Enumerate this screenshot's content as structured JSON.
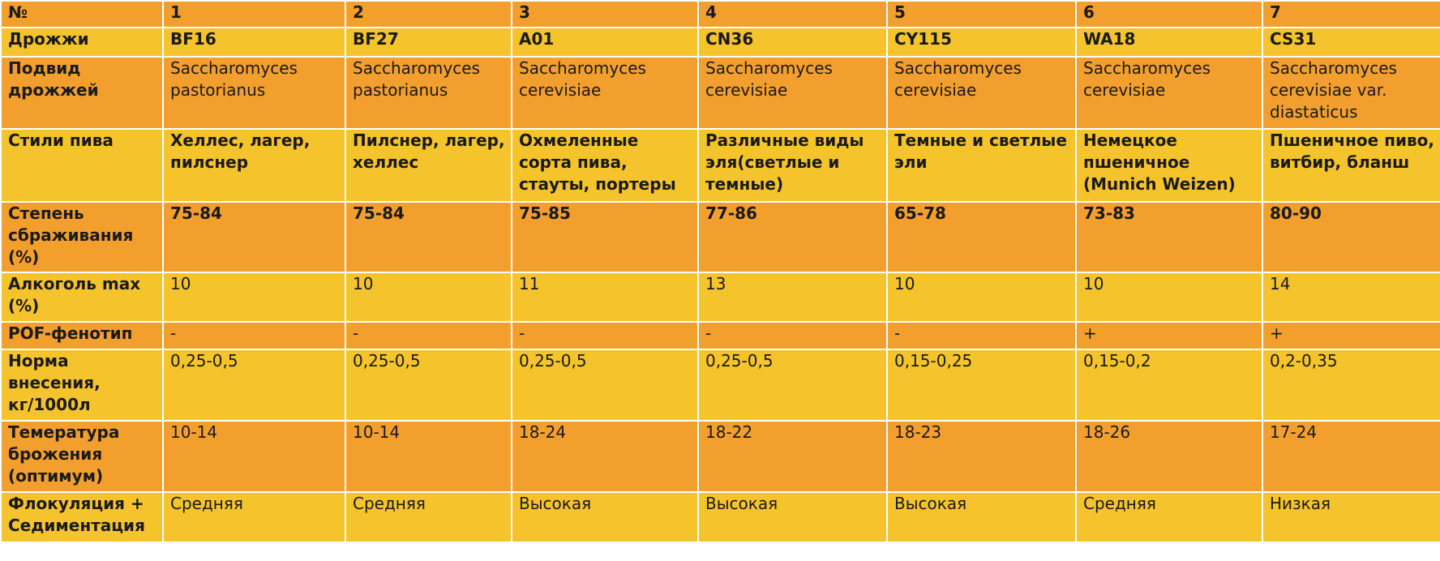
{
  "colors": {
    "orange_row": "#f39f2e",
    "yellow_row": "#f5c32c",
    "grid": "#ffffff"
  },
  "table": {
    "rows": [
      {
        "header": "№",
        "bold": true,
        "cells": [
          "1",
          "2",
          "3",
          "4",
          "5",
          "6",
          "7"
        ]
      },
      {
        "header": "Дрожжи",
        "bold": true,
        "cells": [
          "BF16",
          "BF27",
          "A01",
          "CN36",
          "CY115",
          "WA18",
          "CS31"
        ]
      },
      {
        "header": "Подвид дрожжей",
        "bold": false,
        "cells": [
          "Saccharomyces pastorianus",
          "Saccharomyces pastorianus",
          "Saccharomyces cerevisiae",
          "Saccharomyces cerevisiae",
          "Saccharomyces cerevisiae",
          "Saccharomyces cerevisiae",
          "Saccharomyces cerevisiae var. diastaticus"
        ]
      },
      {
        "header": "Стили пива",
        "bold": true,
        "cells": [
          "Хеллес, лагер, пилснер",
          "Пилснер, лагер, хеллес",
          "Охмеленные сорта пива, стауты, портеры",
          "Различные виды эля(светлые и темные)",
          "Темные и светлые эли",
          "Немецкое пшеничное (Munich Weizen)",
          "Пшеничное пиво, витбир, бланш"
        ]
      },
      {
        "header": "Степень сбраживания (%)",
        "bold": true,
        "cells": [
          "75-84",
          "75-84",
          "75-85",
          "77-86",
          "65-78",
          "73-83",
          "80-90"
        ]
      },
      {
        "header": "Алкоголь max (%)",
        "bold": false,
        "cells": [
          "10",
          "10",
          "11",
          "13",
          "10",
          "10",
          "14"
        ]
      },
      {
        "header": "POF-фенотип",
        "bold": false,
        "cells": [
          "-",
          "-",
          "-",
          "-",
          "-",
          "+",
          "+"
        ]
      },
      {
        "header": "Норма внесения, кг/1000л",
        "bold": false,
        "cells": [
          "0,25-0,5",
          "0,25-0,5",
          "0,25-0,5",
          "0,25-0,5",
          "0,15-0,25",
          "0,15-0,2",
          "0,2-0,35"
        ]
      },
      {
        "header": "Темература брожения (оптимум)",
        "bold": false,
        "cells": [
          "10-14",
          "10-14",
          "18-24",
          "18-22",
          "18-23",
          "18-26",
          "17-24"
        ]
      },
      {
        "header": "Флокуляция + Седиментация",
        "bold": false,
        "cells": [
          "Средняя",
          "Средняя",
          "Высокая",
          "Высокая",
          "Высокая",
          "Средняя",
          "Низкая"
        ]
      }
    ]
  }
}
